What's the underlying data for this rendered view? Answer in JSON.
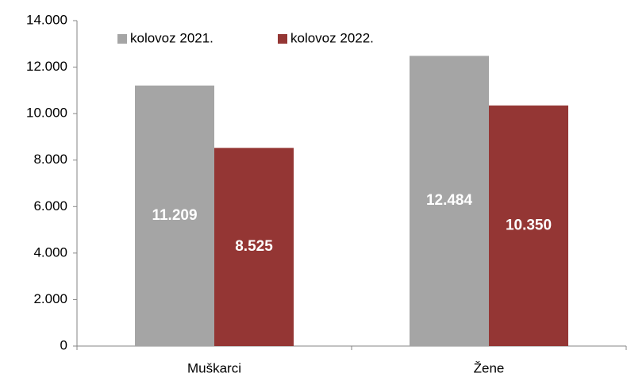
{
  "chart_data": {
    "type": "bar",
    "categories": [
      "Muškarci",
      "Žene"
    ],
    "series": [
      {
        "name": "kolovoz 2021.",
        "color": "#a5a5a5",
        "values": [
          11209,
          12484
        ],
        "value_labels": [
          "11.209",
          "12.484"
        ]
      },
      {
        "name": "kolovoz 2022.",
        "color": "#943634",
        "values": [
          8525,
          10350
        ],
        "value_labels": [
          "8.525",
          "10.350"
        ]
      }
    ],
    "ylim": [
      0,
      14000
    ],
    "yticks": [
      0,
      {
        "value": 2000,
        "label": "2.000"
      },
      {
        "value": 4000,
        "label": "4.000"
      },
      {
        "value": 6000,
        "label": "6.000"
      },
      {
        "value": 8000,
        "label": "8.000"
      },
      {
        "value": 10000,
        "label": "10.000"
      },
      {
        "value": 12000,
        "label": "12.000"
      },
      {
        "value": 14000,
        "label": "14.000"
      }
    ],
    "legend": "top-left"
  }
}
